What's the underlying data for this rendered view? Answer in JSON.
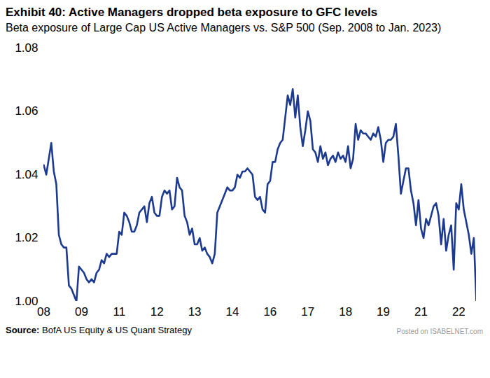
{
  "chart_data": {
    "type": "line",
    "title": "Exhibit 40: Active Managers dropped beta exposure to GFC levels",
    "subtitle": "Beta exposure of Large Cap US Active Managers vs. S&P 500 (Sep. 2008 to Jan. 2023)",
    "source": "BofA US Equity & US Quant Strategy",
    "source_label": "Source:",
    "watermark": "Posted on ISABELNET.com",
    "categories": [
      "08",
      null,
      null,
      null,
      null,
      null,
      null,
      null,
      null,
      null,
      null,
      null,
      null,
      null,
      null,
      "09",
      null,
      null,
      null,
      null,
      null,
      null,
      null,
      null,
      null,
      null,
      null,
      null,
      null,
      null,
      "11",
      null,
      null,
      null,
      null,
      null,
      null,
      null,
      null,
      null,
      null,
      null,
      null,
      null,
      null,
      "12",
      null,
      null,
      null,
      null,
      null,
      null,
      null,
      null,
      null,
      null,
      null,
      null,
      null,
      null,
      "13",
      null,
      null,
      null,
      null,
      null,
      null,
      null,
      null,
      null,
      null,
      null,
      null,
      null,
      null,
      "14",
      null,
      null,
      null,
      null,
      null,
      null,
      null,
      null,
      null,
      null,
      null,
      null,
      null,
      null,
      "16",
      null,
      null,
      null,
      null,
      null,
      null,
      null,
      null,
      null,
      null,
      null,
      null,
      null,
      null,
      "17",
      null,
      null,
      null,
      null,
      null,
      null,
      null,
      null,
      null,
      null,
      null,
      null,
      null,
      null,
      "18",
      null,
      null,
      null,
      null,
      null,
      null,
      null,
      null,
      null,
      null,
      null,
      null,
      null,
      null,
      "19",
      null,
      null,
      null,
      null,
      null,
      null,
      null,
      null,
      null,
      null,
      null,
      null,
      null,
      null,
      "21",
      null,
      null,
      null,
      null,
      null,
      null,
      null,
      null,
      null,
      null,
      null,
      null,
      null,
      null,
      "22",
      null,
      null,
      null,
      null,
      null,
      null,
      null
    ],
    "values": [
      1.043,
      1.04,
      1.045,
      1.05,
      1.041,
      1.037,
      1.021,
      1.018,
      1.017,
      1.017,
      1.005,
      1.004,
      1.002,
      1.0,
      1.011,
      1.01,
      1.009,
      1.007,
      1.006,
      1.007,
      1.006,
      1.009,
      1.01,
      1.013,
      1.012,
      1.015,
      1.014,
      1.015,
      1.015,
      1.015,
      1.022,
      1.021,
      1.028,
      1.027,
      1.025,
      1.022,
      1.022,
      1.024,
      1.028,
      1.029,
      1.03,
      1.025,
      1.031,
      1.033,
      1.028,
      1.027,
      1.027,
      1.033,
      1.035,
      1.034,
      1.035,
      1.029,
      1.03,
      1.039,
      1.036,
      1.035,
      1.027,
      1.025,
      1.021,
      1.023,
      1.018,
      1.018,
      1.02,
      1.016,
      1.017,
      1.015,
      1.014,
      1.012,
      1.015,
      1.028,
      1.03,
      1.032,
      1.034,
      1.036,
      1.035,
      1.035,
      1.036,
      1.04,
      1.039,
      1.041,
      1.041,
      1.042,
      1.041,
      1.04,
      1.033,
      1.032,
      1.033,
      1.029,
      1.028,
      1.037,
      1.038,
      1.044,
      1.044,
      1.048,
      1.05,
      1.051,
      1.058,
      1.065,
      1.062,
      1.067,
      1.058,
      1.065,
      1.055,
      1.049,
      1.054,
      1.06,
      1.057,
      1.048,
      1.047,
      1.044,
      1.049,
      1.045,
      1.047,
      1.043,
      1.045,
      1.046,
      1.044,
      1.047,
      1.045,
      1.046,
      1.044,
      1.049,
      1.042,
      1.045,
      1.056,
      1.051,
      1.054,
      1.053,
      1.053,
      1.052,
      1.051,
      1.053,
      1.052,
      1.055,
      1.051,
      1.044,
      1.05,
      1.051,
      1.051,
      1.052,
      1.056,
      1.046,
      1.034,
      1.038,
      1.042,
      1.042,
      1.035,
      1.031,
      1.024,
      1.032,
      1.023,
      1.02,
      1.026,
      1.024,
      1.027,
      1.03,
      1.031,
      1.027,
      1.018,
      1.026,
      1.016,
      1.021,
      1.024,
      1.01,
      1.031,
      1.029,
      1.037,
      1.029,
      1.025,
      1.021,
      1.015,
      1.02,
      1.0
    ],
    "color": "#1c3a8f",
    "ylim": [
      1.0,
      1.08
    ],
    "yticks": [
      {
        "value": 1.0,
        "label": "1.00"
      },
      1.02,
      1.04,
      1.06,
      1.08
    ],
    "grid": false
  }
}
